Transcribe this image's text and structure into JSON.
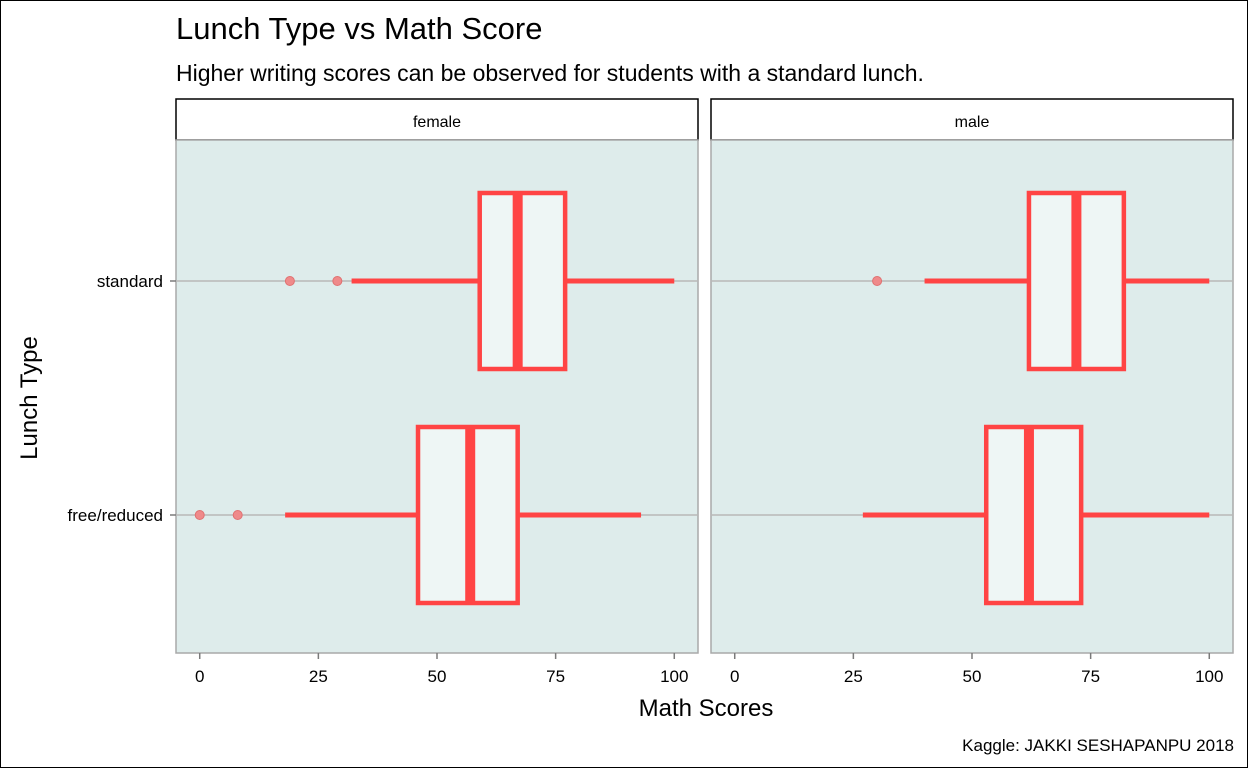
{
  "chart_data": {
    "type": "boxplot",
    "title": "Lunch Type vs Math Score",
    "subtitle": "Higher writing scores can be observed for students with a standard lunch.",
    "xlabel": "Math Scores",
    "ylabel": "Lunch Type",
    "caption": "Kaggle: JAKKI SESHAPANPU 2018",
    "xlim": [
      -5,
      105
    ],
    "xticks": [
      0,
      25,
      50,
      75,
      100
    ],
    "categories": [
      "standard",
      "free/reduced"
    ],
    "grid": "horizontal",
    "colors": {
      "box_stroke": "#ff4444",
      "box_fill": "#eef6f5",
      "panel_bg": "#deeceb",
      "outlier": "#ef8a8a",
      "gridline": "#b8b8b8"
    },
    "panels": [
      {
        "strip": "female",
        "boxes": [
          {
            "category": "standard",
            "whisker_low": 32,
            "q1": 59,
            "median": 67,
            "q3": 77,
            "whisker_high": 100,
            "outliers": [
              19,
              29
            ]
          },
          {
            "category": "free/reduced",
            "whisker_low": 18,
            "q1": 46,
            "median": 57,
            "q3": 67,
            "whisker_high": 93,
            "outliers": [
              0,
              8
            ]
          }
        ]
      },
      {
        "strip": "male",
        "boxes": [
          {
            "category": "standard",
            "whisker_low": 40,
            "q1": 62,
            "median": 72,
            "q3": 82,
            "whisker_high": 100,
            "outliers": [
              30
            ]
          },
          {
            "category": "free/reduced",
            "whisker_low": 27,
            "q1": 53,
            "median": 62,
            "q3": 73,
            "whisker_high": 100,
            "outliers": []
          }
        ]
      }
    ]
  }
}
